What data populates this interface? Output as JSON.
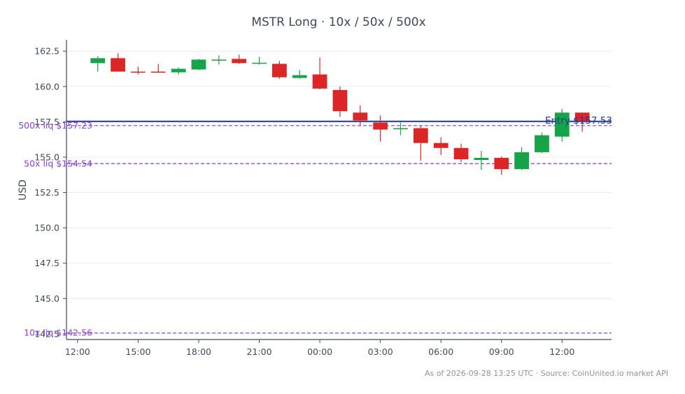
{
  "title": "MSTR Long · 10x / 50x / 500x",
  "footer": "As of 2026-09-28 13:25 UTC · Source: CoinUnited.io market API",
  "colors": {
    "up": "#16a34a",
    "down": "#dc2626",
    "entry": "#1f3a93",
    "liq": "#8b3fd9",
    "axis": "#3d4a5c",
    "grid": "#ececf0",
    "text": "#3d4a5c"
  },
  "chart_data": {
    "type": "candlestick",
    "title": "MSTR Long · 10x / 50x / 500x",
    "xlabel": "",
    "ylabel": "USD",
    "ylim": [
      142.1,
      163.3
    ],
    "xlim": [
      "2026-09-27 11:27",
      "2026-09-28 14:27"
    ],
    "x_ticks": [
      {
        "time": "2026-09-27 12:00",
        "label": "12:00"
      },
      {
        "time": "2026-09-27 15:00",
        "label": "15:00"
      },
      {
        "time": "2026-09-27 18:00",
        "label": "18:00"
      },
      {
        "time": "2026-09-27 21:00",
        "label": "21:00"
      },
      {
        "time": "2026-09-28 00:00",
        "label": "00:00"
      },
      {
        "time": "2026-09-28 03:00",
        "label": "03:00"
      },
      {
        "time": "2026-09-28 06:00",
        "label": "06:00"
      },
      {
        "time": "2026-09-28 09:00",
        "label": "09:00"
      },
      {
        "time": "2026-09-28 12:00",
        "label": "12:00"
      }
    ],
    "y_ticks": [
      {
        "value": 162.5,
        "label": "162.5"
      },
      {
        "value": 160.0,
        "label": "160.0"
      },
      {
        "value": 157.5,
        "label": "157.5"
      },
      {
        "value": 155.0,
        "label": "155.0"
      },
      {
        "value": 152.5,
        "label": "152.5"
      },
      {
        "value": 150.0,
        "label": "150.0"
      },
      {
        "value": 147.5,
        "label": "147.5"
      },
      {
        "value": 145.0,
        "label": "145.0"
      },
      {
        "value": 142.5,
        "label": "142.5"
      }
    ],
    "grid": true,
    "candles": [
      {
        "time": "2026-09-27 13:00",
        "open": 161.65,
        "high": 162.15,
        "low": 161.05,
        "close": 162.0
      },
      {
        "time": "2026-09-27 14:00",
        "open": 162.0,
        "high": 162.35,
        "low": 161.05,
        "close": 161.05
      },
      {
        "time": "2026-09-27 15:00",
        "open": 161.05,
        "high": 161.4,
        "low": 160.85,
        "close": 160.98
      },
      {
        "time": "2026-09-27 16:00",
        "open": 161.05,
        "high": 161.6,
        "low": 161.0,
        "close": 161.02
      },
      {
        "time": "2026-09-27 17:00",
        "open": 161.0,
        "high": 161.35,
        "low": 160.85,
        "close": 161.25
      },
      {
        "time": "2026-09-27 18:00",
        "open": 161.2,
        "high": 161.95,
        "low": 161.15,
        "close": 161.9
      },
      {
        "time": "2026-09-27 19:00",
        "open": 161.85,
        "high": 162.2,
        "low": 161.55,
        "close": 161.9
      },
      {
        "time": "2026-09-27 20:00",
        "open": 161.95,
        "high": 162.25,
        "low": 161.6,
        "close": 161.65
      },
      {
        "time": "2026-09-27 21:00",
        "open": 161.62,
        "high": 162.1,
        "low": 161.55,
        "close": 161.68
      },
      {
        "time": "2026-09-27 22:00",
        "open": 161.6,
        "high": 161.8,
        "low": 160.55,
        "close": 160.65
      },
      {
        "time": "2026-09-27 23:00",
        "open": 160.6,
        "high": 161.15,
        "low": 160.55,
        "close": 160.8
      },
      {
        "time": "2026-09-28 00:00",
        "open": 160.85,
        "high": 162.05,
        "low": 159.8,
        "close": 159.85
      },
      {
        "time": "2026-09-28 01:00",
        "open": 159.75,
        "high": 160.0,
        "low": 157.85,
        "close": 158.25
      },
      {
        "time": "2026-09-28 02:00",
        "open": 158.15,
        "high": 158.65,
        "low": 157.25,
        "close": 157.6
      },
      {
        "time": "2026-09-28 03:00",
        "open": 157.45,
        "high": 157.95,
        "low": 156.1,
        "close": 156.95
      },
      {
        "time": "2026-09-28 04:00",
        "open": 157.0,
        "high": 157.45,
        "low": 156.55,
        "close": 157.05
      },
      {
        "time": "2026-09-28 05:00",
        "open": 157.05,
        "high": 157.2,
        "low": 154.75,
        "close": 156.0
      },
      {
        "time": "2026-09-28 06:00",
        "open": 156.0,
        "high": 156.4,
        "low": 155.15,
        "close": 155.65
      },
      {
        "time": "2026-09-28 07:00",
        "open": 155.65,
        "high": 155.95,
        "low": 154.65,
        "close": 154.85
      },
      {
        "time": "2026-09-28 08:00",
        "open": 154.8,
        "high": 155.45,
        "low": 154.1,
        "close": 154.95
      },
      {
        "time": "2026-09-28 09:00",
        "open": 154.95,
        "high": 155.05,
        "low": 153.75,
        "close": 154.15
      },
      {
        "time": "2026-09-28 10:00",
        "open": 154.15,
        "high": 155.7,
        "low": 154.1,
        "close": 155.35
      },
      {
        "time": "2026-09-28 11:00",
        "open": 155.35,
        "high": 156.75,
        "low": 155.3,
        "close": 156.55
      },
      {
        "time": "2026-09-28 12:00",
        "open": 156.45,
        "high": 158.4,
        "low": 156.1,
        "close": 158.15
      },
      {
        "time": "2026-09-28 13:00",
        "open": 158.15,
        "high": 158.15,
        "low": 156.8,
        "close": 157.55
      }
    ],
    "lines": [
      {
        "name": "entry",
        "label": "Entry $157.53",
        "value": 157.53,
        "style": "solid",
        "label_side": "right"
      },
      {
        "name": "liq-500x",
        "label": "500x liq $157.23",
        "value": 157.23,
        "style": "dashed",
        "label_side": "left"
      },
      {
        "name": "liq-50x",
        "label": "50x liq $154.54",
        "value": 154.54,
        "style": "dashed",
        "label_side": "left"
      },
      {
        "name": "liq-10x",
        "label": "10x liq $142.56",
        "value": 142.56,
        "style": "dashed",
        "label_side": "left"
      }
    ]
  }
}
